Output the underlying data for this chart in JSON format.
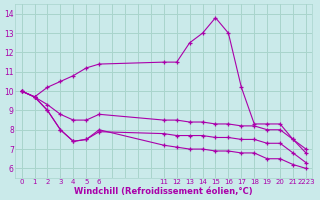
{
  "xlabel": "Windchill (Refroidissement éolien,°C)",
  "bg_color": "#caeaea",
  "grid_color": "#a8d4cc",
  "line_color": "#aa00aa",
  "xtick_labels": [
    "0",
    "1",
    "2",
    "3",
    "4",
    "5",
    "6",
    "",
    "",
    "",
    "",
    "11",
    "12",
    "13",
    "14",
    "15",
    "16",
    "17",
    "18",
    "19",
    "20",
    "21",
    "2223"
  ],
  "xtick_positions": [
    0,
    1,
    2,
    3,
    4,
    5,
    6,
    7,
    8,
    9,
    10,
    11,
    12,
    13,
    14,
    15,
    16,
    17,
    18,
    19,
    20,
    21,
    22
  ],
  "yticks": [
    6,
    7,
    8,
    9,
    10,
    11,
    12,
    13,
    14
  ],
  "ylim": [
    5.5,
    14.5
  ],
  "lines": [
    {
      "xi": [
        0,
        1,
        2,
        3,
        4,
        5,
        6,
        11,
        12,
        13,
        14,
        15,
        16,
        17,
        18,
        19,
        20,
        21,
        22
      ],
      "y": [
        10.0,
        9.7,
        10.2,
        10.5,
        10.8,
        11.2,
        11.4,
        11.5,
        11.5,
        12.5,
        13.0,
        13.8,
        13.0,
        10.2,
        8.3,
        8.3,
        8.3,
        7.5,
        7.0
      ]
    },
    {
      "xi": [
        0,
        1,
        2,
        3,
        4,
        5,
        6,
        11,
        12,
        13,
        14,
        15,
        16,
        17,
        18,
        19,
        20,
        21,
        22
      ],
      "y": [
        10.0,
        9.7,
        9.3,
        8.8,
        8.5,
        8.5,
        8.8,
        8.5,
        8.5,
        8.4,
        8.4,
        8.3,
        8.3,
        8.2,
        8.2,
        8.0,
        8.0,
        7.5,
        6.8
      ]
    },
    {
      "xi": [
        0,
        1,
        2,
        3,
        4,
        5,
        6,
        11,
        12,
        13,
        14,
        15,
        16,
        17,
        18,
        19,
        20,
        21,
        22
      ],
      "y": [
        10.0,
        9.7,
        9.0,
        8.0,
        7.4,
        7.5,
        7.9,
        7.8,
        7.7,
        7.7,
        7.7,
        7.6,
        7.6,
        7.5,
        7.5,
        7.3,
        7.3,
        6.8,
        6.3
      ]
    },
    {
      "xi": [
        0,
        1,
        2,
        3,
        4,
        5,
        6,
        11,
        12,
        13,
        14,
        15,
        16,
        17,
        18,
        19,
        20,
        21,
        22
      ],
      "y": [
        10.0,
        9.7,
        9.0,
        8.0,
        7.4,
        7.5,
        8.0,
        7.2,
        7.1,
        7.0,
        7.0,
        6.9,
        6.9,
        6.8,
        6.8,
        6.5,
        6.5,
        6.2,
        6.0
      ]
    }
  ]
}
